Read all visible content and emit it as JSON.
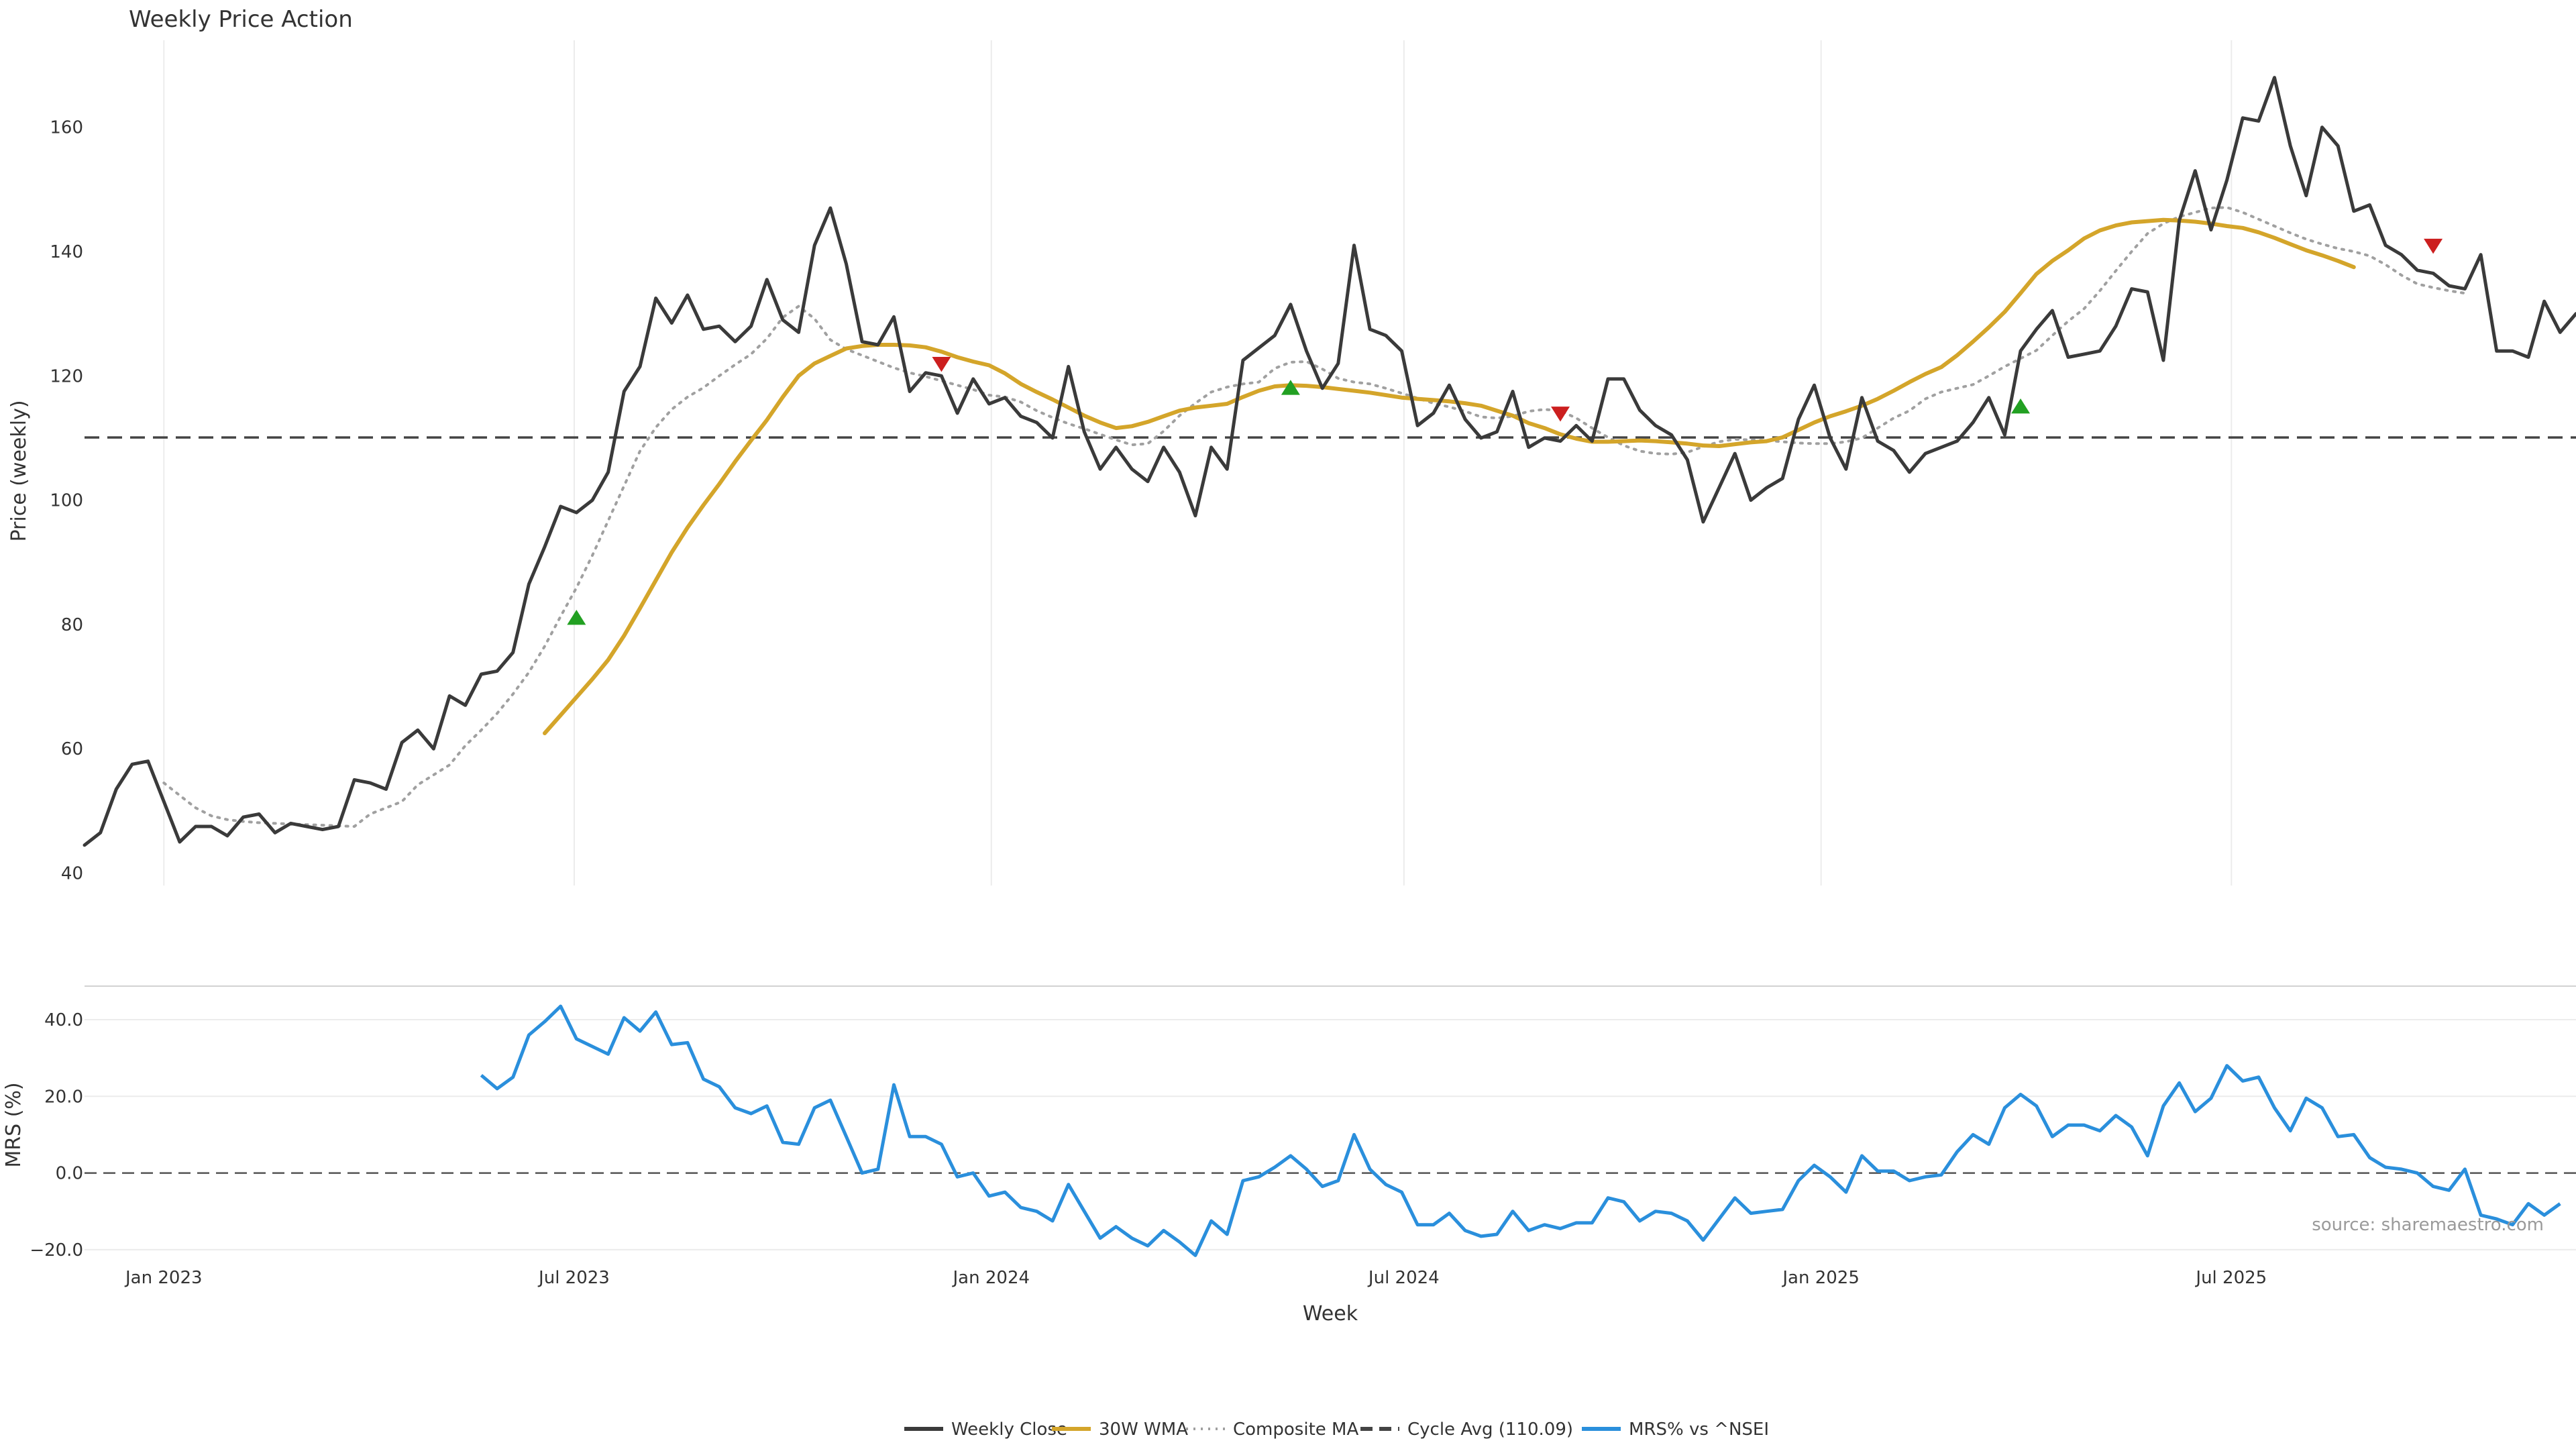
{
  "chart_data": {
    "type": "line",
    "title": "Weekly Price Action",
    "xlabel": "Week",
    "x_tick_labels": [
      "Jan 2023",
      "Jul 2023",
      "Jan 2024",
      "Jul 2024",
      "Jan 2025",
      "Jul 2025"
    ],
    "x_tick_dates": [
      "2023-01-01",
      "2023-07-01",
      "2024-01-01",
      "2024-07-01",
      "2025-01-01",
      "2025-07-01"
    ],
    "x_range": [
      "2022-11-27",
      "2025-11-30"
    ],
    "grid": true,
    "legend_placement": "bottom-center",
    "source": "source: sharemaestro.com",
    "weekly_start": "2022-11-27",
    "price_panel": {
      "ylabel": "Price (weekly)",
      "ylim": [
        38,
        174
      ],
      "y_ticks": [
        40,
        60,
        80,
        100,
        120,
        140,
        160
      ],
      "cycle_avg": 110.09,
      "series": [
        {
          "name": "Weekly Close",
          "color": "#3a3a3a",
          "values": [
            44.5,
            46.5,
            53.5,
            57.5,
            58,
            51.5,
            45,
            47.5,
            47.5,
            46,
            49,
            49.5,
            46.5,
            48,
            47.5,
            47,
            47.5,
            55,
            54.5,
            53.5,
            61,
            63,
            60,
            68.5,
            67,
            72,
            72.5,
            75.5,
            86.5,
            92.5,
            99,
            98,
            100,
            104.5,
            117.5,
            121.5,
            132.5,
            128.5,
            133,
            127.5,
            128,
            125.5,
            128,
            135.5,
            129,
            127,
            141,
            147,
            138,
            125.5,
            125,
            129.5,
            117.5,
            120.5,
            120,
            114,
            119.5,
            115.5,
            116.5,
            113.5,
            112.5,
            110,
            121.5,
            111,
            105,
            108.5,
            105,
            103,
            108.5,
            104.5,
            97.5,
            108.5,
            105,
            122.5,
            124.5,
            126.5,
            131.5,
            124,
            118,
            122,
            141,
            127.5,
            126.5,
            124,
            112,
            114,
            118.5,
            113,
            110,
            111,
            117.5,
            108.5,
            110,
            109.5,
            112,
            109.5,
            119.5,
            119.5,
            114.5,
            112,
            110.5,
            106.5,
            96.5,
            102,
            107.5,
            100,
            102,
            103.5,
            113,
            118.5,
            110,
            105,
            116.5,
            109.5,
            108,
            104.5,
            107.5,
            108.5,
            109.5,
            112.5,
            116.5,
            110.5,
            124,
            127.5,
            130.5,
            123,
            123.5,
            124,
            128,
            134,
            133.5,
            122.5,
            145,
            153,
            143.5,
            151.5,
            161.5,
            161,
            168,
            157,
            149,
            160,
            157,
            146.5,
            147.5,
            141,
            139.5,
            137,
            136.5,
            134.5,
            134,
            139.5,
            124,
            124,
            123,
            132,
            127,
            130
          ]
        },
        {
          "name": "30W WMA",
          "color": "#d4a52a",
          "start_index": 29,
          "values": [
            62.5,
            65.4,
            68.3,
            71.2,
            74.3,
            78.2,
            82.6,
            87.1,
            91.6,
            95.6,
            99.2,
            102.6,
            106.2,
            109.6,
            112.9,
            116.6,
            120,
            122,
            123.2,
            124.4,
            124.8,
            125,
            125,
            124.9,
            124.6,
            123.9,
            123,
            122.3,
            121.7,
            120.4,
            118.7,
            117.4,
            116.2,
            114.9,
            113.6,
            112.5,
            111.6,
            111.9,
            112.6,
            113.5,
            114.4,
            114.9,
            115.2,
            115.5,
            116.6,
            117.6,
            118.3,
            118.5,
            118.4,
            118.2,
            117.9,
            117.6,
            117.3,
            116.9,
            116.5,
            116.3,
            116.1,
            115.9,
            115.6,
            115.2,
            114.4,
            113.6,
            112.4,
            111.6,
            110.6,
            109.9,
            109.4,
            109.4,
            109.5,
            109.6,
            109.5,
            109.3,
            109.1,
            108.8,
            108.7,
            109,
            109.3,
            109.5,
            110.1,
            111.3,
            112.5,
            113.5,
            114.3,
            115.2,
            116.3,
            117.6,
            119,
            120.3,
            121.4,
            123.3,
            125.5,
            127.8,
            130.3,
            133.3,
            136.4,
            138.5,
            140.2,
            142.1,
            143.4,
            144.2,
            144.7,
            144.9,
            145.1,
            145,
            144.8,
            144.5,
            144.1,
            143.8,
            143.1,
            142.2,
            141.2,
            140.2,
            139.4,
            138.5,
            137.5
          ]
        },
        {
          "name": "Composite MA",
          "color": "#a0a0a0",
          "start_index": 5,
          "values": [
            54.5,
            52.5,
            50.5,
            49.2,
            48.6,
            48.3,
            48.1,
            48,
            47.9,
            47.8,
            47.7,
            47.6,
            47.5,
            49.5,
            50.5,
            51.5,
            54.2,
            55.8,
            57.4,
            60.5,
            63,
            65.7,
            68.8,
            72.3,
            76.5,
            81.3,
            85.9,
            91.1,
            96.7,
            102.3,
            107.9,
            111.7,
            114.6,
            116.6,
            118.1,
            120,
            121.8,
            123.5,
            126,
            129.4,
            131.2,
            129.2,
            125.8,
            124.3,
            123.3,
            122.3,
            121.3,
            120.5,
            119.9,
            119.2,
            118.5,
            117.8,
            116.9,
            116.6,
            115.8,
            114.4,
            113.3,
            112.3,
            111.5,
            110.6,
            109.7,
            108.9,
            109.1,
            111.1,
            113.6,
            115.6,
            117.4,
            118.2,
            118.7,
            119,
            121.2,
            122.2,
            122.3,
            121.1,
            119.6,
            119,
            118.7,
            118,
            117.2,
            116.4,
            115.6,
            115,
            114.3,
            113.4,
            113.2,
            113.5,
            114.3,
            114.6,
            114.4,
            113.2,
            111.6,
            110.1,
            108.8,
            107.9,
            107.5,
            107.4,
            107.7,
            108.6,
            109.4,
            109.8,
            109.7,
            109.6,
            109.4,
            109.2,
            109.1,
            109.1,
            109.4,
            110,
            111.6,
            113.2,
            114.4,
            116.3,
            117.4,
            118,
            118.6,
            120,
            121.5,
            122.8,
            124.1,
            126.5,
            128.8,
            130.8,
            133.7,
            136.9,
            140,
            142.9,
            144.5,
            145.6,
            146.3,
            147,
            147.1,
            146.3,
            145.2,
            144.1,
            143,
            142,
            141.2,
            140.5,
            140,
            139.3,
            137.9,
            136.2,
            134.8,
            134.2,
            133.7,
            133.3
          ]
        }
      ],
      "markers": [
        {
          "type": "up",
          "index": 31,
          "value": 81,
          "color": "#22a022"
        },
        {
          "type": "down",
          "index": 54,
          "value": 122,
          "color": "#cc1f1f"
        },
        {
          "type": "up",
          "index": 76,
          "value": 118,
          "color": "#22a022"
        },
        {
          "type": "down",
          "index": 93,
          "value": 114,
          "color": "#cc1f1f"
        },
        {
          "type": "up",
          "index": 122,
          "value": 115,
          "color": "#22a022"
        },
        {
          "type": "down",
          "index": 148,
          "value": 141,
          "color": "#cc1f1f"
        }
      ]
    },
    "mrs_panel": {
      "ylabel": "MRS (%)",
      "ylim": [
        -23,
        47
      ],
      "y_ticks": [
        -20,
        0,
        20,
        40
      ],
      "y_tick_labels": [
        "−20.0",
        "0.0",
        "20.0",
        "40.0"
      ],
      "zero_line": 0,
      "series": [
        {
          "name": "MRS% vs ^NSEI",
          "color": "#2a8fdc",
          "start_index": 25,
          "values": [
            25.5,
            22,
            25,
            36,
            39.5,
            43.5,
            35,
            33,
            31,
            40.5,
            37,
            42,
            33.5,
            34,
            24.5,
            22.5,
            17,
            15.5,
            17.5,
            8,
            7.5,
            17,
            19,
            9.5,
            0,
            1,
            23,
            9.5,
            9.5,
            7.5,
            -1,
            0,
            -6,
            -5,
            -9,
            -10,
            -12.5,
            -3,
            -10,
            -17,
            -14,
            -17,
            -19,
            -15,
            -18,
            -21.5,
            -12.5,
            -16,
            -2,
            -1,
            1.5,
            4.5,
            1,
            -3.5,
            -2,
            10,
            1,
            -3,
            -5,
            -13.5,
            -13.5,
            -10.5,
            -15,
            -16.5,
            -16,
            -10,
            -15,
            -13.5,
            -14.5,
            -13,
            -13,
            -6.5,
            -7.5,
            -12.5,
            -10,
            -10.5,
            -12.5,
            -17.5,
            -12,
            -6.5,
            -10.5,
            -10,
            -9.5,
            -2,
            2,
            -1,
            -5,
            4.5,
            0.5,
            0.5,
            -2,
            -1,
            -0.5,
            5.5,
            10,
            7.5,
            17,
            20.5,
            17.5,
            9.5,
            12.5,
            12.5,
            11,
            15,
            12,
            4.5,
            17.5,
            23.5,
            16,
            19.5,
            28,
            24,
            25,
            17,
            11,
            19.5,
            17,
            9.5,
            10,
            4,
            1.5,
            1,
            0,
            -3.5,
            -4.5,
            1,
            -11,
            -12,
            -13.5,
            -8,
            -11,
            -8
          ]
        }
      ]
    },
    "legend": [
      {
        "label": "Weekly Close",
        "color": "#3a3a3a",
        "style": "solid"
      },
      {
        "label": "30W WMA",
        "color": "#d4a52a",
        "style": "solid"
      },
      {
        "label": "Composite MA",
        "color": "#a0a0a0",
        "style": "dotted"
      },
      {
        "label": "Cycle Avg (110.09)",
        "color": "#444444",
        "style": "dashed"
      },
      {
        "label": "MRS% vs ^NSEI",
        "color": "#2a8fdc",
        "style": "solid"
      }
    ]
  }
}
